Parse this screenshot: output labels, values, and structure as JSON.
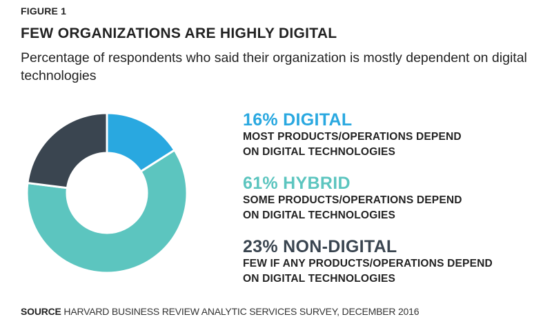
{
  "figure_label": "FIGURE 1",
  "title": "FEW ORGANIZATIONS ARE HIGHLY DIGITAL",
  "subtitle": "Percentage of respondents who said their organization is mostly dependent on digital technologies",
  "source_label": "SOURCE",
  "source_text": "HARVARD BUSINESS REVIEW ANALYTIC SERVICES SURVEY, DECEMBER 2016",
  "chart_data": {
    "type": "pie",
    "variant": "donut",
    "title": "FEW ORGANIZATIONS ARE HIGHLY DIGITAL",
    "subtitle": "Percentage of respondents who said their organization is mostly dependent on digital technologies",
    "start": "12 o'clock, clockwise",
    "legend_position": "right",
    "series": [
      {
        "name": "DIGITAL",
        "value": 16,
        "label": "16% DIGITAL",
        "description": [
          "MOST PRODUCTS/OPERATIONS DEPEND",
          "ON DIGITAL TECHNOLOGIES"
        ],
        "color": "#29a8e0"
      },
      {
        "name": "HYBRID",
        "value": 61,
        "label": "61% HYBRID",
        "description": [
          "SOME PRODUCTS/OPERATIONS DEPEND",
          "ON DIGITAL TECHNOLOGIES"
        ],
        "color": "#5cc5bf"
      },
      {
        "name": "NON-DIGITAL",
        "value": 23,
        "label": "23% NON-DIGITAL",
        "description": [
          "FEW IF ANY PRODUCTS/OPERATIONS DEPEND",
          "ON DIGITAL TECHNOLOGIES"
        ],
        "color": "#3a4550"
      }
    ]
  }
}
